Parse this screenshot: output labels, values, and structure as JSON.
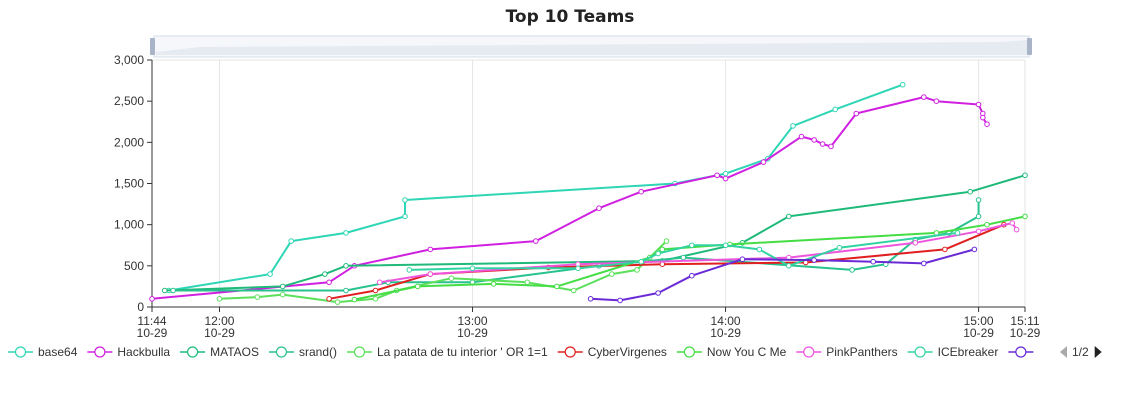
{
  "chart_data": {
    "type": "line",
    "title": "Top 10 Teams",
    "xlabel": "",
    "ylabel": "",
    "ylim": [
      0,
      3000
    ],
    "xlim": [
      "2024-10-29T11:44",
      "2024-10-29T15:11"
    ],
    "y_ticks": [
      "0",
      "500",
      "1,000",
      "1,500",
      "2,000",
      "2,500",
      "3,000"
    ],
    "x_ticks": [
      {
        "time": "11:44",
        "date": "10-29"
      },
      {
        "time": "12:00",
        "date": "10-29"
      },
      {
        "time": "13:00",
        "date": "10-29"
      },
      {
        "time": "14:00",
        "date": "10-29"
      },
      {
        "time": "15:00",
        "date": "10-29"
      },
      {
        "time": "15:11",
        "date": "10-29"
      }
    ],
    "grid": "vertical",
    "legend_position": "bottom",
    "legend_page": "1/2",
    "data_zoom_slider": true,
    "series": [
      {
        "name": "base64",
        "color": "#2fd6b5",
        "points": [
          [
            "11:48",
            200
          ],
          [
            "12:12",
            400
          ],
          [
            "12:17",
            800
          ],
          [
            "12:30",
            900
          ],
          [
            "12:44",
            1100
          ],
          [
            "12:44",
            1300
          ],
          [
            "13:48",
            1500
          ],
          [
            "14:00",
            1620
          ],
          [
            "14:10",
            1800
          ],
          [
            "14:16",
            2200
          ],
          [
            "14:26",
            2400
          ],
          [
            "14:42",
            2700
          ]
        ]
      },
      {
        "name": "Hackbulla",
        "color": "#d020e0",
        "points": [
          [
            "11:44",
            100
          ],
          [
            "12:26",
            300
          ],
          [
            "12:32",
            500
          ],
          [
            "12:50",
            700
          ],
          [
            "13:15",
            800
          ],
          [
            "13:30",
            1200
          ],
          [
            "13:40",
            1400
          ],
          [
            "13:58",
            1600
          ],
          [
            "14:00",
            1560
          ],
          [
            "14:09",
            1760
          ],
          [
            "14:18",
            2070
          ],
          [
            "14:21",
            2030
          ],
          [
            "14:23",
            1980
          ],
          [
            "14:25",
            1950
          ],
          [
            "14:31",
            2350
          ],
          [
            "14:47",
            2550
          ],
          [
            "14:50",
            2500
          ],
          [
            "15:00",
            2460
          ],
          [
            "15:01",
            2350
          ],
          [
            "15:01",
            2300
          ],
          [
            "15:02",
            2220
          ]
        ]
      },
      {
        "name": "MATAOS",
        "color": "#1fba7a",
        "points": [
          [
            "11:47",
            200
          ],
          [
            "12:15",
            250
          ],
          [
            "12:25",
            400
          ],
          [
            "12:30",
            500
          ],
          [
            "13:45",
            560
          ],
          [
            "14:04",
            780
          ],
          [
            "14:15",
            1100
          ],
          [
            "14:58",
            1400
          ],
          [
            "15:11",
            1600
          ]
        ]
      },
      {
        "name": "srand()",
        "color": "#28c28e",
        "points": [
          [
            "11:49",
            200
          ],
          [
            "12:30",
            200
          ],
          [
            "12:40",
            300
          ],
          [
            "13:00",
            300
          ],
          [
            "13:30",
            500
          ],
          [
            "13:50",
            600
          ],
          [
            "14:30",
            450
          ],
          [
            "14:38",
            520
          ],
          [
            "14:45",
            820
          ],
          [
            "14:53",
            900
          ],
          [
            "15:00",
            1100
          ],
          [
            "15:00",
            1300
          ]
        ]
      },
      {
        "name": "La patata de tu interior ' OR 1=1",
        "color": "#5ce05c",
        "points": [
          [
            "12:00",
            100
          ],
          [
            "12:09",
            120
          ],
          [
            "12:15",
            150
          ],
          [
            "12:28",
            60
          ],
          [
            "12:37",
            100
          ],
          [
            "12:42",
            200
          ],
          [
            "12:55",
            350
          ],
          [
            "13:13",
            300
          ],
          [
            "13:24",
            200
          ],
          [
            "13:33",
            400
          ],
          [
            "13:39",
            450
          ],
          [
            "13:46",
            800
          ]
        ]
      },
      {
        "name": "CyberVirgenes",
        "color": "#e02020",
        "points": [
          [
            "12:26",
            100
          ],
          [
            "12:37",
            200
          ],
          [
            "12:50",
            400
          ],
          [
            "13:18",
            480
          ],
          [
            "13:45",
            520
          ],
          [
            "14:19",
            540
          ],
          [
            "14:52",
            700
          ],
          [
            "15:06",
            1000
          ]
        ]
      },
      {
        "name": "Now You C Me",
        "color": "#44dd44",
        "points": [
          [
            "12:32",
            90
          ],
          [
            "12:47",
            250
          ],
          [
            "13:05",
            280
          ],
          [
            "13:20",
            250
          ],
          [
            "13:42",
            600
          ],
          [
            "13:45",
            700
          ],
          [
            "14:01",
            760
          ],
          [
            "14:50",
            900
          ],
          [
            "15:02",
            1000
          ],
          [
            "15:11",
            1100
          ]
        ]
      },
      {
        "name": "PinkPanthers",
        "color": "#ee55dd",
        "points": [
          [
            "12:38",
            300
          ],
          [
            "12:50",
            400
          ],
          [
            "13:25",
            520
          ],
          [
            "14:15",
            600
          ],
          [
            "14:45",
            780
          ],
          [
            "15:00",
            920
          ],
          [
            "15:08",
            1020
          ],
          [
            "15:09",
            940
          ]
        ]
      },
      {
        "name": "ICEbreaker",
        "color": "#32d3a2",
        "points": [
          [
            "12:45",
            450
          ],
          [
            "13:00",
            470
          ],
          [
            "13:25",
            470
          ],
          [
            "13:40",
            550
          ],
          [
            "13:44",
            650
          ],
          [
            "13:52",
            750
          ],
          [
            "14:00",
            750
          ],
          [
            "14:08",
            700
          ],
          [
            "14:15",
            500
          ],
          [
            "14:27",
            720
          ],
          [
            "14:55",
            900
          ]
        ]
      },
      {
        "name": "",
        "color": "#6a2ad6",
        "points": [
          [
            "13:28",
            100
          ],
          [
            "13:35",
            80
          ],
          [
            "13:44",
            170
          ],
          [
            "13:52",
            380
          ],
          [
            "14:04",
            580
          ],
          [
            "14:21",
            570
          ],
          [
            "14:35",
            550
          ],
          [
            "14:47",
            530
          ],
          [
            "14:59",
            700
          ]
        ]
      }
    ]
  },
  "legend": {
    "pager_label": "1/2",
    "prev_icon": "triangle-left-icon",
    "next_icon": "triangle-right-icon"
  }
}
